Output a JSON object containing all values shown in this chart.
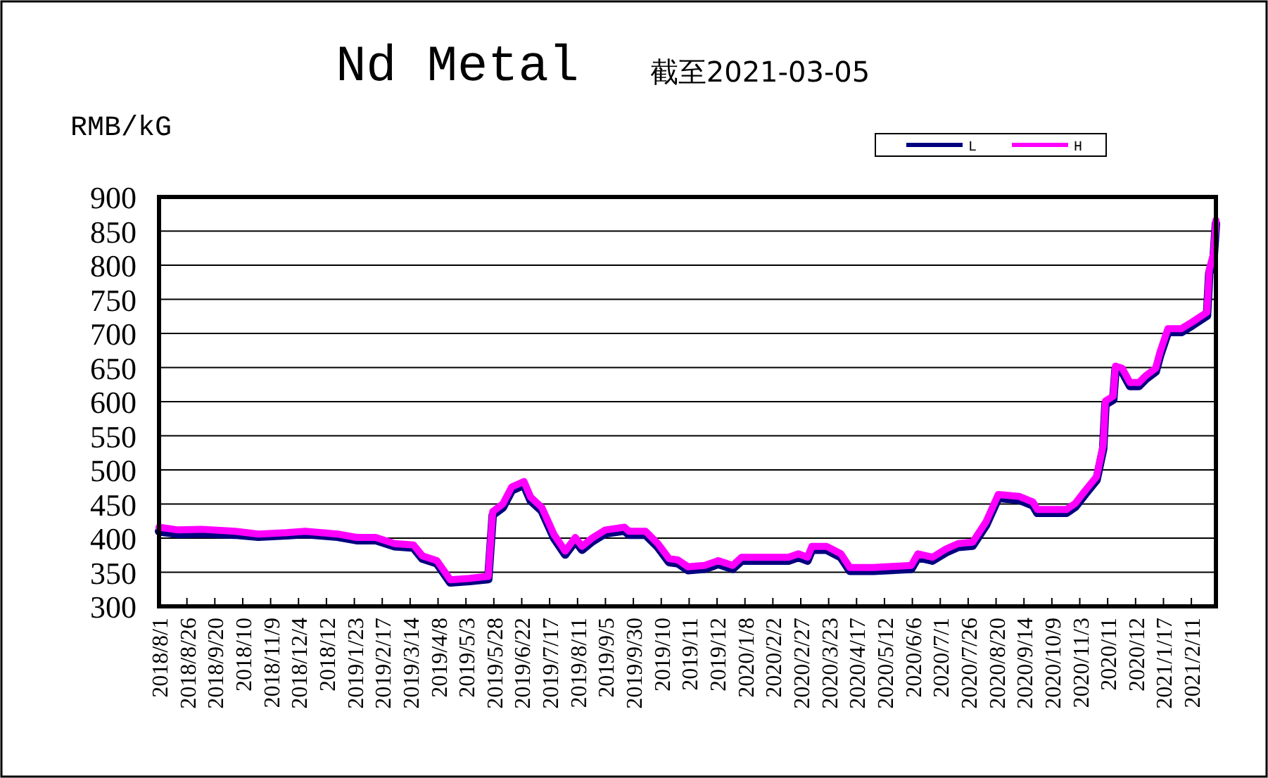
{
  "chart_data": {
    "type": "line",
    "title": "Nd Metal",
    "subtitle": "截至2021-03-05",
    "ylabel": "RMB/kG",
    "x": [
      "2018-08-01",
      "2018-08-18",
      "2018-09-08",
      "2018-10-08",
      "2018-10-29",
      "2018-11-23",
      "2018-12-10",
      "2019-01-08",
      "2019-01-25",
      "2019-02-11",
      "2019-02-28",
      "2019-03-17",
      "2019-03-25",
      "2019-04-07",
      "2019-04-19",
      "2019-05-06",
      "2019-05-23",
      "2019-05-27",
      "2019-06-05",
      "2019-06-13",
      "2019-06-24",
      "2019-06-30",
      "2019-07-10",
      "2019-07-21",
      "2019-07-31",
      "2019-08-09",
      "2019-08-15",
      "2019-08-24",
      "2019-09-05",
      "2019-09-22",
      "2019-09-26",
      "2019-10-11",
      "2019-10-22",
      "2019-11-01",
      "2019-11-09",
      "2019-11-18",
      "2019-12-03",
      "2019-12-15",
      "2019-12-28",
      "2020-01-05",
      "2020-02-16",
      "2020-02-25",
      "2020-03-04",
      "2020-03-08",
      "2020-03-21",
      "2020-04-03",
      "2020-04-11",
      "2020-05-02",
      "2020-06-05",
      "2020-06-11",
      "2020-06-24",
      "2020-07-06",
      "2020-07-17",
      "2020-07-30",
      "2020-08-11",
      "2020-08-22",
      "2020-09-10",
      "2020-09-22",
      "2020-09-26",
      "2020-10-22",
      "2020-10-30",
      "2020-11-08",
      "2020-11-18",
      "2020-11-24",
      "2020-11-26",
      "2020-12-03",
      "2020-12-05",
      "2020-12-11",
      "2020-12-18",
      "2020-12-26",
      "2021-01-01",
      "2021-01-10",
      "2021-01-14",
      "2021-01-21",
      "2021-02-02",
      "2021-02-12",
      "2021-02-25",
      "2021-02-27",
      "2021-03-03",
      "2021-03-05"
    ],
    "series": [
      {
        "name": "L",
        "color": "#000080",
        "values": [
          410,
          406,
          407,
          405,
          402,
          404,
          406,
          402,
          397,
          397,
          388,
          386,
          370,
          363,
          335,
          337,
          340,
          434,
          445,
          470,
          478,
          455,
          440,
          400,
          376,
          396,
          383,
          395,
          407,
          411,
          405,
          405,
          387,
          365,
          363,
          353,
          355,
          362,
          355,
          367,
          367,
          372,
          367,
          383,
          383,
          372,
          352,
          352,
          355,
          372,
          367,
          379,
          387,
          389,
          419,
          459,
          456,
          448,
          437,
          437,
          446,
          465,
          485,
          531,
          596,
          603,
          647,
          644,
          623,
          623,
          633,
          644,
          668,
          702,
          702,
          712,
          726,
          788,
          812,
          861
        ]
      },
      {
        "name": "H",
        "color": "#ff00ff",
        "values": [
          416,
          412,
          413,
          410,
          406,
          408,
          410,
          406,
          401,
          401,
          392,
          390,
          374,
          367,
          339,
          341,
          344,
          439,
          450,
          475,
          483,
          460,
          445,
          405,
          381,
          401,
          388,
          400,
          412,
          416,
          410,
          410,
          392,
          370,
          368,
          358,
          360,
          367,
          360,
          372,
          372,
          377,
          372,
          388,
          388,
          377,
          357,
          357,
          360,
          377,
          372,
          384,
          392,
          394,
          424,
          464,
          461,
          453,
          442,
          442,
          451,
          470,
          490,
          536,
          601,
          608,
          652,
          649,
          628,
          628,
          638,
          649,
          673,
          707,
          707,
          717,
          731,
          793,
          817,
          866
        ]
      }
    ],
    "xlim": [
      "2018-08-01",
      "2021-03-05"
    ],
    "xticks": [
      {
        "value": "2018-08-01",
        "label": "2018/8/1"
      },
      {
        "value": "2018-08-26",
        "label": "2018/8/26"
      },
      {
        "value": "2018-09-20",
        "label": "2018/9/20"
      },
      {
        "value": "2018-10-15",
        "label": "2018/10"
      },
      {
        "value": "2018-11-09",
        "label": "2018/11/9"
      },
      {
        "value": "2018-12-04",
        "label": "2018/12/4"
      },
      {
        "value": "2018-12-29",
        "label": "2018/12"
      },
      {
        "value": "2019-01-23",
        "label": "2019/1/23"
      },
      {
        "value": "2019-02-17",
        "label": "2019/2/17"
      },
      {
        "value": "2019-03-14",
        "label": "2019/3/14"
      },
      {
        "value": "2019-04-08",
        "label": "2019/4/8"
      },
      {
        "value": "2019-05-03",
        "label": "2019/5/3"
      },
      {
        "value": "2019-05-28",
        "label": "2019/5/28"
      },
      {
        "value": "2019-06-22",
        "label": "2019/6/22"
      },
      {
        "value": "2019-07-17",
        "label": "2019/7/17"
      },
      {
        "value": "2019-08-11",
        "label": "2019/8/11"
      },
      {
        "value": "2019-09-05",
        "label": "2019/9/5"
      },
      {
        "value": "2019-09-30",
        "label": "2019/9/30"
      },
      {
        "value": "2019-10-25",
        "label": "2019/10"
      },
      {
        "value": "2019-11-19",
        "label": "2019/11"
      },
      {
        "value": "2019-12-14",
        "label": "2019/12"
      },
      {
        "value": "2020-01-08",
        "label": "2020/1/8"
      },
      {
        "value": "2020-02-02",
        "label": "2020/2/2"
      },
      {
        "value": "2020-02-27",
        "label": "2020/2/27"
      },
      {
        "value": "2020-03-23",
        "label": "2020/3/23"
      },
      {
        "value": "2020-04-17",
        "label": "2020/4/17"
      },
      {
        "value": "2020-05-12",
        "label": "2020/5/12"
      },
      {
        "value": "2020-06-06",
        "label": "2020/6/6"
      },
      {
        "value": "2020-07-01",
        "label": "2020/7/1"
      },
      {
        "value": "2020-07-26",
        "label": "2020/7/26"
      },
      {
        "value": "2020-08-20",
        "label": "2020/8/20"
      },
      {
        "value": "2020-09-14",
        "label": "2020/9/14"
      },
      {
        "value": "2020-10-09",
        "label": "2020/10/9"
      },
      {
        "value": "2020-11-03",
        "label": "2020/11/3"
      },
      {
        "value": "2020-11-28",
        "label": "2020/11"
      },
      {
        "value": "2020-12-23",
        "label": "2020/12"
      },
      {
        "value": "2021-01-17",
        "label": "2021/1/17"
      },
      {
        "value": "2021-02-11",
        "label": "2021/2/11"
      }
    ],
    "ylim": [
      300,
      900
    ],
    "yticks": [
      300,
      350,
      400,
      450,
      500,
      550,
      600,
      650,
      700,
      750,
      800,
      850,
      900
    ],
    "grid": "y",
    "legend": "top right",
    "line_style": "solid"
  }
}
